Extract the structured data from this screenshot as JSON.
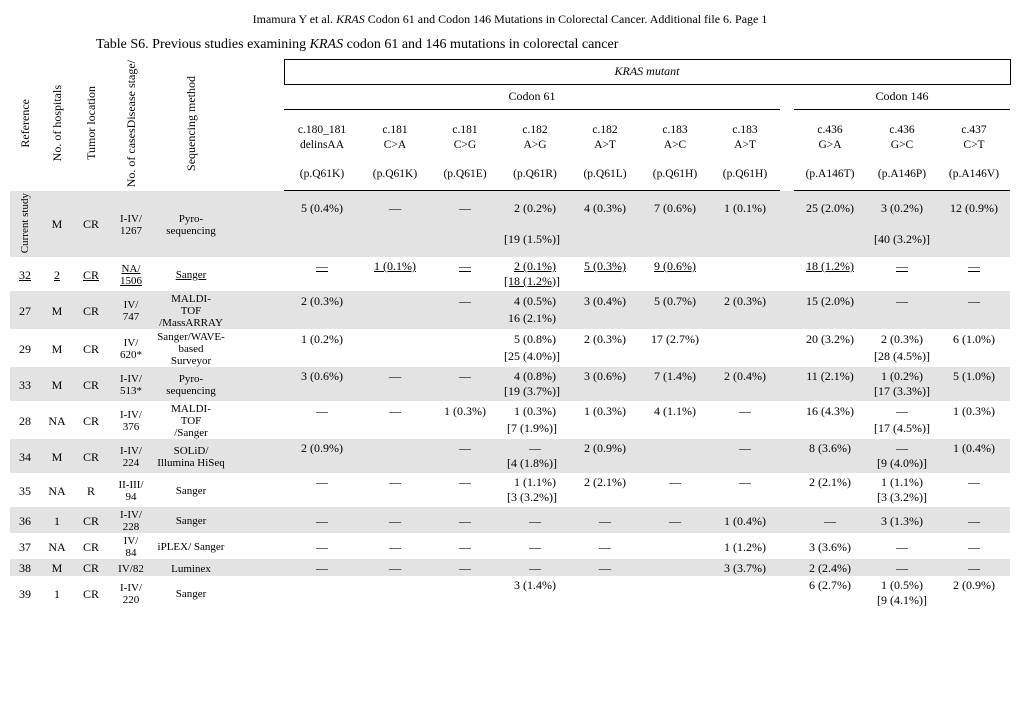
{
  "header": {
    "author": "Imamura Y et al.",
    "paper": "KRAS",
    "paperTail": " Codon 61 and Codon 146 Mutations in Colorectal Cancer.  Additional file 6.  Page 1"
  },
  "title": {
    "lead": "Table S6.  Previous studies examining ",
    "it": "KRAS",
    "tail": " codon 61 and 146 mutations in colorectal cancer"
  },
  "rowHeaders": {
    "ref": "Reference",
    "hosp": "No. of hospitals",
    "loc": "Tumor location",
    "cases": "No. of casesDisease stage/",
    "seq": "Sequencing method"
  },
  "band": {
    "kras": "KRAS",
    "mutant": " mutant",
    "c61": "Codon 61",
    "c146": "Codon 146"
  },
  "muts": [
    {
      "a": "c.180_181",
      "b": "delinsAA",
      "c": "(p.Q61K)"
    },
    {
      "a": "c.181",
      "b": "C>A",
      "c": "(p.Q61K)"
    },
    {
      "a": "c.181",
      "b": "C>G",
      "c": "(p.Q61E)"
    },
    {
      "a": "c.182",
      "b": "A>G",
      "c": "(p.Q61R)"
    },
    {
      "a": "c.182",
      "b": "A>T",
      "c": "(p.Q61L)"
    },
    {
      "a": "c.183",
      "b": "A>C",
      "c": "(p.Q61H)"
    },
    {
      "a": "c.183",
      "b": "A>T",
      "c": "(p.Q61H)"
    },
    {
      "a": "c.436",
      "b": "G>A",
      "c": "(p.A146T)"
    },
    {
      "a": "c.436",
      "b": "G>C",
      "c": "(p.A146P)"
    },
    {
      "a": "c.437",
      "b": "C>T",
      "c": "(p.A146V)"
    }
  ],
  "rows": [
    {
      "id": "cur",
      "shade": true,
      "ref": "Current study",
      "refRot": true,
      "hosp": "M",
      "loc": "CR",
      "cases": "I-IV/ 1267",
      "method": "Pyro-sequencing",
      "top": [
        "5 (0.4%)",
        "—",
        "—",
        "2 (0.2%)",
        "4 (0.3%)",
        "7 (0.6%)",
        "1 (0.1%)",
        "25 (2.0%)",
        "3 (0.2%)",
        "12 (0.9%)"
      ],
      "merge61": "[19 (1.5%)]",
      "merge146": "[40 (3.2%)]"
    },
    {
      "id": "32",
      "ref": "32",
      "hosp": "2",
      "loc": "CR",
      "cases": "NA/ 1506",
      "method": "Sanger",
      "ul": true,
      "top": [
        "—",
        "1 (0.1%)",
        "—",
        "2 (0.1%)",
        "5 (0.3%)",
        "9 (0.6%)",
        "",
        "18 (1.2%)",
        "—",
        "—"
      ],
      "merge61": "[18 (1.2%)]",
      "merge146": ""
    },
    {
      "id": "27",
      "shade": true,
      "ref": "27",
      "hosp": "M",
      "loc": "CR",
      "cases": "IV/ 747",
      "method": "MALDI-TOF /MassARRAY",
      "top": [
        "2 (0.3%)",
        "",
        "—",
        "4 (0.5%)",
        "3 (0.4%)",
        "5 (0.7%)",
        "2 (0.3%)",
        "15 (2.0%)",
        "—",
        "—"
      ],
      "merge61": "16 (2.1%)",
      "merge146": ""
    },
    {
      "id": "29",
      "ref": "29",
      "hosp": "M",
      "loc": "CR",
      "cases": "IV/ 620*",
      "method": "Sanger/WAVE-based Surveyor",
      "top": [
        "1 (0.2%)",
        "",
        "",
        "5 (0.8%)",
        "2 (0.3%)",
        "17 (2.7%)",
        "",
        "20 (3.2%)",
        "2 (0.3%)",
        "6 (1.0%)"
      ],
      "merge61": "[25 (4.0%)]",
      "merge146": "[28 (4.5%)]"
    },
    {
      "id": "33",
      "shade": true,
      "ref": "33",
      "hosp": "M",
      "loc": "CR",
      "cases": "I-IV/ 513*",
      "method": "Pyro-sequencing",
      "top": [
        "3 (0.6%)",
        "—",
        "—",
        "4 (0.8%)",
        "3 (0.6%)",
        "7 (1.4%)",
        "2 (0.4%)",
        "11 (2.1%)",
        "1 (0.2%)",
        "5 (1.0%)"
      ],
      "merge61": "[19 (3.7%)]",
      "merge146": "[17 (3.3%)]"
    },
    {
      "id": "28",
      "ref": "28",
      "hosp": "NA",
      "loc": "CR",
      "cases": "I-IV/ 376",
      "method": "MALDI-TOF /Sanger",
      "top": [
        "—",
        "—",
        "1 (0.3%)",
        "1 (0.3%)",
        "1 (0.3%)",
        "4 (1.1%)",
        "—",
        "16 (4.3%)",
        "—",
        "1 (0.3%)"
      ],
      "merge61": "[7 (1.9%)]",
      "merge146": "[17 (4.5%)]"
    },
    {
      "id": "34",
      "shade": true,
      "ref": "34",
      "hosp": "M",
      "loc": "CR",
      "cases": "I-IV/ 224",
      "method": "SOLiD/ Illumina HiSeq",
      "top": [
        "2 (0.9%)",
        "",
        "—",
        "—",
        "2 (0.9%)",
        "",
        "—",
        "8 (3.6%)",
        "—",
        "1 (0.4%)"
      ],
      "merge61": "[4 (1.8%)]",
      "merge146": "[9 (4.0%)]"
    },
    {
      "id": "35",
      "ref": "35",
      "hosp": "NA",
      "loc": "R",
      "cases": "II-III/ 94",
      "method": "Sanger",
      "top": [
        "—",
        "—",
        "—",
        "1 (1.1%)",
        "2 (2.1%)",
        "—",
        "—",
        "2 (2.1%)",
        "1 (1.1%)",
        "—"
      ],
      "merge61": "[3 (3.2%)]",
      "merge146": "[3 (3.2%)]"
    },
    {
      "id": "36",
      "shade": true,
      "ref": "36",
      "hosp": "1",
      "loc": "CR",
      "cases": "I-IV/ 228",
      "method": "Sanger",
      "top": [
        "—",
        "—",
        "—",
        "—",
        "—",
        "—",
        "1 (0.4%)",
        "—",
        "3 (1.3%)",
        "—"
      ],
      "merge61": "",
      "merge146": ""
    },
    {
      "id": "37",
      "ref": "37",
      "hosp": "NA",
      "loc": "CR",
      "cases": "IV/ 84",
      "method": "iPLEX/ Sanger",
      "top": [
        "—",
        "—",
        "—",
        "—",
        "—",
        "",
        "1 (1.2%)",
        "3 (3.6%)",
        "—",
        "—"
      ],
      "merge61": "",
      "merge146": ""
    },
    {
      "id": "38",
      "shade": true,
      "ref": "38",
      "hosp": "M",
      "loc": "CR",
      "cases": "IV/82",
      "method": "Luminex",
      "top": [
        "—",
        "—",
        "—",
        "—",
        "—",
        "",
        "3 (3.7%)",
        "2 (2.4%)",
        "—",
        "—"
      ],
      "merge61": "",
      "merge146": ""
    },
    {
      "id": "39",
      "ref": "39",
      "hosp": "1",
      "loc": "CR",
      "cases": "I-IV/ 220",
      "method": "Sanger",
      "top": [
        "",
        "",
        "",
        "3 (1.4%)",
        "",
        "",
        "",
        "6 (2.7%)",
        "1 (0.5%)",
        "2 (0.9%)"
      ],
      "merge61": "",
      "merge146": "[9 (4.1%)]"
    }
  ]
}
